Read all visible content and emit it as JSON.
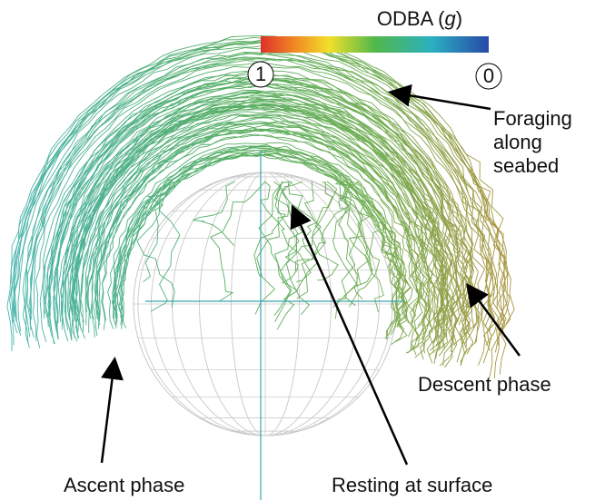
{
  "colorbar": {
    "title": [
      "ODBA (",
      "g",
      ")"
    ],
    "ticks": [
      "1",
      "0"
    ]
  },
  "annotations": {
    "foraging": [
      "Foraging",
      "along",
      "seabed"
    ],
    "descent": "Descent phase",
    "resting": "Resting at surface",
    "ascent": "Ascent phase"
  }
}
